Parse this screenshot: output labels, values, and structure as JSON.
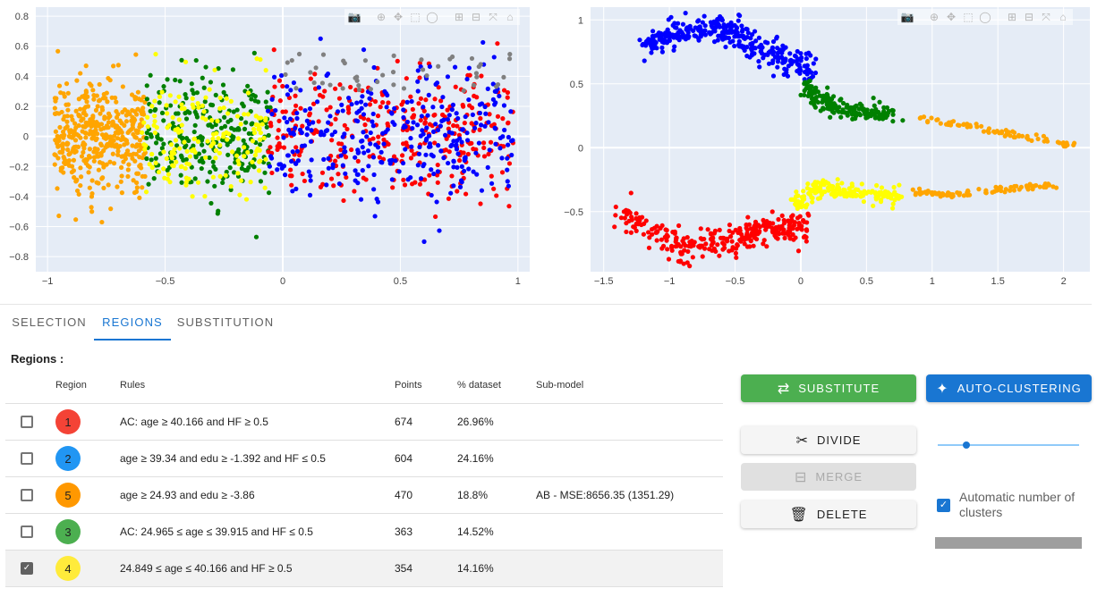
{
  "left_plot": {
    "x_ticks": [
      "−1",
      "−0.5",
      "0",
      "0.5",
      "1"
    ],
    "y_ticks": [
      "0.8",
      "0.6",
      "0.4",
      "0.2",
      "0",
      "−0.2",
      "−0.4",
      "−0.6",
      "−0.8"
    ]
  },
  "right_plot": {
    "x_ticks": [
      "−1.5",
      "−1",
      "−0.5",
      "0",
      "0.5",
      "1",
      "1.5",
      "2"
    ],
    "y_ticks": [
      "1",
      "0.5",
      "0",
      "−0.5"
    ]
  },
  "chart_data": [
    {
      "type": "scatter",
      "xlim": [
        -1.05,
        1.05
      ],
      "ylim": [
        -0.9,
        0.86
      ],
      "grid": true,
      "series": [
        {
          "color": "#ffa500",
          "description": "orange cluster",
          "x_range": [
            -0.97,
            -0.58
          ],
          "y_range": [
            -0.55,
            0.55
          ]
        },
        {
          "color": "#008000",
          "description": "green cluster",
          "x_range": [
            -0.58,
            -0.05
          ],
          "y_range": [
            -0.55,
            0.55
          ]
        },
        {
          "color": "#ffff00",
          "description": "yellow cluster",
          "x_range": [
            -0.6,
            -0.07
          ],
          "y_range": [
            -0.4,
            0.45
          ]
        },
        {
          "color": "#ff0000",
          "description": "red cluster",
          "x_range": [
            -0.07,
            0.98
          ],
          "y_range": [
            -0.5,
            0.45
          ]
        },
        {
          "color": "#0000ff",
          "description": "blue cluster",
          "x_range": [
            -0.07,
            0.98
          ],
          "y_range": [
            -0.5,
            0.45
          ]
        },
        {
          "color": "#808080",
          "description": "grey cluster",
          "x_range": [
            -0.05,
            0.98
          ],
          "y_range": [
            0.3,
            0.55
          ]
        }
      ]
    },
    {
      "type": "scatter",
      "xlim": [
        -1.6,
        2.2
      ],
      "ylim": [
        -0.97,
        1.1
      ],
      "grid": true,
      "series": [
        {
          "color": "#0000ff",
          "curve": [
            [
              -1.2,
              0.78
            ],
            [
              -1.0,
              0.9
            ],
            [
              -0.7,
              0.93
            ],
            [
              -0.5,
              0.9
            ],
            [
              -0.3,
              0.78
            ],
            [
              -0.1,
              0.67
            ],
            [
              0.1,
              0.6
            ]
          ]
        },
        {
          "color": "#008000",
          "curve": [
            [
              0.05,
              0.48
            ],
            [
              0.15,
              0.36
            ],
            [
              0.3,
              0.31
            ],
            [
              0.5,
              0.27
            ],
            [
              0.7,
              0.25
            ]
          ]
        },
        {
          "color": "#ffa500",
          "curve": [
            [
              0.9,
              0.23
            ],
            [
              1.2,
              0.18
            ],
            [
              1.5,
              0.13
            ],
            [
              1.8,
              0.07
            ],
            [
              2.05,
              0.02
            ]
          ]
        },
        {
          "color": "#ffff00",
          "curve": [
            [
              -0.05,
              -0.45
            ],
            [
              0.15,
              -0.3
            ],
            [
              0.4,
              -0.35
            ],
            [
              0.75,
              -0.38
            ]
          ]
        },
        {
          "color": "#ffa500",
          "curve": [
            [
              0.85,
              -0.35
            ],
            [
              1.1,
              -0.37
            ],
            [
              1.4,
              -0.34
            ],
            [
              1.65,
              -0.31
            ],
            [
              1.95,
              -0.29
            ]
          ]
        },
        {
          "color": "#ff0000",
          "curve": [
            [
              -1.4,
              -0.47
            ],
            [
              -1.15,
              -0.65
            ],
            [
              -0.85,
              -0.78
            ],
            [
              -0.6,
              -0.74
            ],
            [
              -0.35,
              -0.66
            ],
            [
              -0.15,
              -0.63
            ],
            [
              0.05,
              -0.62
            ]
          ]
        }
      ]
    }
  ],
  "tabs": [
    {
      "label": "Selection",
      "active": false
    },
    {
      "label": "Regions",
      "active": true
    },
    {
      "label": "Substitution",
      "active": false
    }
  ],
  "regions_title": "Regions :",
  "table": {
    "headers": [
      "Region",
      "Rules",
      "Points",
      "% dataset",
      "Sub-model"
    ],
    "rows": [
      {
        "region": "1",
        "color": "#f44336",
        "rules": "AC: age ≥ 40.166 and HF ≥ 0.5",
        "points": "674",
        "pct": "26.96%",
        "submodel": "",
        "checked": false
      },
      {
        "region": "2",
        "color": "#2196f3",
        "rules": "age ≥ 39.34 and edu ≥ -1.392 and HF ≤ 0.5",
        "points": "604",
        "pct": "24.16%",
        "submodel": "",
        "checked": false
      },
      {
        "region": "5",
        "color": "#ff9800",
        "rules": "age ≥ 24.93 and edu ≥ -3.86",
        "points": "470",
        "pct": "18.8%",
        "submodel": "AB - MSE:8656.35 (1351.29)",
        "checked": false
      },
      {
        "region": "3",
        "color": "#4caf50",
        "rules": "AC: 24.965 ≤ age ≤ 39.915 and HF ≤ 0.5",
        "points": "363",
        "pct": "14.52%",
        "submodel": "",
        "checked": false
      },
      {
        "region": "4",
        "color": "#ffeb3b",
        "rules": "24.849 ≤ age ≤ 40.166 and HF ≥ 0.5",
        "points": "354",
        "pct": "14.16%",
        "submodel": "",
        "checked": true
      }
    ]
  },
  "buttons": {
    "substitute": "SUBSTITUTE",
    "auto_clustering": "AUTO-CLUSTERING",
    "divide": "DIVIDE",
    "merge": "MERGE",
    "delete": "DELETE"
  },
  "auto_clusters_label": "Automatic number of clusters",
  "colors": {
    "accent": "#1976d2",
    "success": "#4caf50",
    "plot_bg": "#e5ecf6"
  }
}
